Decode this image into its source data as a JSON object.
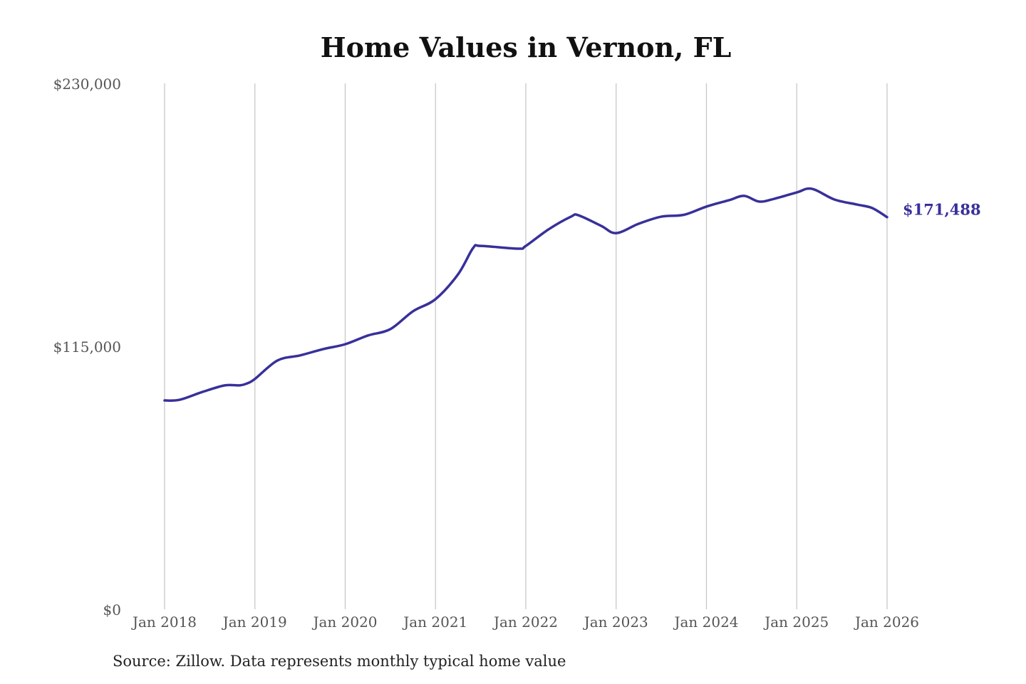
{
  "chart_data": {
    "type": "line",
    "title": "Home Values in Vernon, FL",
    "source": "Source: Zillow. Data represents monthly typical home value",
    "xlabel": "",
    "ylabel": "",
    "ylim": [
      0,
      230000
    ],
    "y_ticks": [
      0,
      115000,
      230000
    ],
    "y_tick_labels": [
      "$0",
      "$115,000",
      "$230,000"
    ],
    "x_ticks": [
      "2018-01",
      "2019-01",
      "2020-01",
      "2021-01",
      "2022-01",
      "2023-01",
      "2024-01",
      "2025-01",
      "2026-01"
    ],
    "x_tick_labels": [
      "Jan 2018",
      "Jan 2019",
      "Jan 2020",
      "Jan 2021",
      "Jan 2022",
      "Jan 2023",
      "Jan 2024",
      "Jan 2025",
      "Jan 2026"
    ],
    "grid": "vertical",
    "line_color": "#38309a",
    "end_label": "$171,488",
    "series": [
      {
        "points": [
          [
            "2018-01",
            91300
          ],
          [
            "2018-03",
            91600
          ],
          [
            "2018-06",
            95000
          ],
          [
            "2018-09",
            97900
          ],
          [
            "2018-11",
            97900
          ],
          [
            "2018-12",
            98800
          ],
          [
            "2019-01",
            100700
          ],
          [
            "2019-04",
            108800
          ],
          [
            "2019-07",
            111000
          ],
          [
            "2019-10",
            113700
          ],
          [
            "2020-01",
            115900
          ],
          [
            "2020-04",
            119700
          ],
          [
            "2020-07",
            122500
          ],
          [
            "2020-10",
            130300
          ],
          [
            "2021-01",
            135600
          ],
          [
            "2021-04",
            146500
          ],
          [
            "2021-06",
            158000
          ],
          [
            "2021-07",
            158900
          ],
          [
            "2021-12",
            157700
          ],
          [
            "2022-01",
            158900
          ],
          [
            "2022-04",
            166100
          ],
          [
            "2022-07",
            171700
          ],
          [
            "2022-08",
            172300
          ],
          [
            "2022-11",
            167700
          ],
          [
            "2023-01",
            164500
          ],
          [
            "2023-04",
            168600
          ],
          [
            "2023-07",
            171700
          ],
          [
            "2023-10",
            172500
          ],
          [
            "2024-01",
            176100
          ],
          [
            "2024-04",
            178900
          ],
          [
            "2024-06",
            180800
          ],
          [
            "2024-08",
            178300
          ],
          [
            "2024-10",
            179500
          ],
          [
            "2025-01",
            182300
          ],
          [
            "2025-03",
            183900
          ],
          [
            "2025-06",
            179200
          ],
          [
            "2025-09",
            177000
          ],
          [
            "2025-11",
            175500
          ],
          [
            "2026-01",
            171488
          ]
        ]
      }
    ]
  }
}
